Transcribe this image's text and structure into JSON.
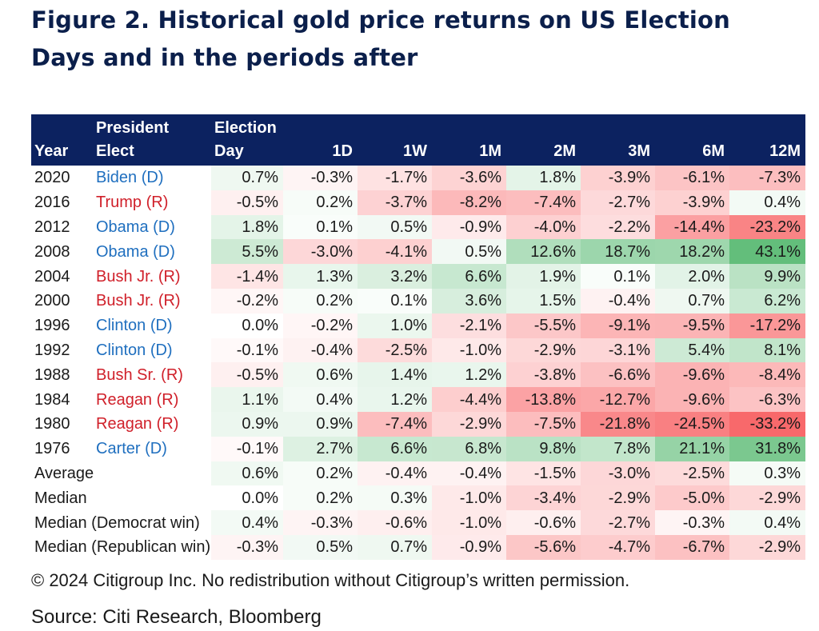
{
  "title": "Figure 2. Historical gold price returns on US Election Days and in the periods after",
  "copyright": "© 2024 Citigroup Inc. No redistribution without Citigroup’s written permission.",
  "source": "Source: Citi Research, Bloomberg",
  "chart_data": {
    "type": "table",
    "columns": [
      "Year",
      "President Elect",
      "Election Day",
      "1D",
      "1W",
      "1M",
      "2M",
      "3M",
      "6M",
      "12M"
    ],
    "rows": [
      {
        "label": "2020",
        "president": "Biden (D)",
        "party": "D",
        "values": [
          0.7,
          -0.3,
          -1.7,
          -3.6,
          1.8,
          -3.9,
          -6.1,
          -7.3
        ]
      },
      {
        "label": "2016",
        "president": "Trump (R)",
        "party": "R",
        "values": [
          -0.5,
          0.2,
          -3.7,
          -8.2,
          -7.4,
          -2.7,
          -3.9,
          0.4
        ]
      },
      {
        "label": "2012",
        "president": "Obama (D)",
        "party": "D",
        "values": [
          1.8,
          0.1,
          0.5,
          -0.9,
          -4.0,
          -2.2,
          -14.4,
          -23.2
        ]
      },
      {
        "label": "2008",
        "president": "Obama (D)",
        "party": "D",
        "values": [
          5.5,
          -3.0,
          -4.1,
          0.5,
          12.6,
          18.7,
          18.2,
          43.1
        ]
      },
      {
        "label": "2004",
        "president": "Bush Jr. (R)",
        "party": "R",
        "values": [
          -1.4,
          1.3,
          3.2,
          6.6,
          1.9,
          0.1,
          2.0,
          9.9
        ]
      },
      {
        "label": "2000",
        "president": "Bush Jr. (R)",
        "party": "R",
        "values": [
          -0.2,
          0.2,
          0.1,
          3.6,
          1.5,
          -0.4,
          0.7,
          6.2
        ]
      },
      {
        "label": "1996",
        "president": "Clinton (D)",
        "party": "D",
        "values": [
          0.0,
          -0.2,
          1.0,
          -2.1,
          -5.5,
          -9.1,
          -9.5,
          -17.2
        ]
      },
      {
        "label": "1992",
        "president": "Clinton (D)",
        "party": "D",
        "values": [
          -0.1,
          -0.4,
          -2.5,
          -1.0,
          -2.9,
          -3.1,
          5.4,
          8.1
        ]
      },
      {
        "label": "1988",
        "president": "Bush Sr. (R)",
        "party": "R",
        "values": [
          -0.5,
          0.6,
          1.4,
          1.2,
          -3.8,
          -6.6,
          -9.6,
          -8.4
        ]
      },
      {
        "label": "1984",
        "president": "Reagan (R)",
        "party": "R",
        "values": [
          1.1,
          0.4,
          1.2,
          -4.4,
          -13.8,
          -12.7,
          -9.6,
          -6.3
        ]
      },
      {
        "label": "1980",
        "president": "Reagan (R)",
        "party": "R",
        "values": [
          0.9,
          0.9,
          -7.4,
          -2.9,
          -7.5,
          -21.8,
          -24.5,
          -33.2
        ]
      },
      {
        "label": "1976",
        "president": "Carter (D)",
        "party": "D",
        "values": [
          -0.1,
          2.7,
          6.6,
          6.8,
          9.8,
          7.8,
          21.1,
          31.8
        ]
      },
      {
        "label": "Average",
        "president": "",
        "party": "",
        "values": [
          0.6,
          0.2,
          -0.4,
          -0.4,
          -1.5,
          -3.0,
          -2.5,
          0.3
        ]
      },
      {
        "label": "Median",
        "president": "",
        "party": "",
        "values": [
          0.0,
          0.2,
          0.3,
          -1.0,
          -3.4,
          -2.9,
          -5.0,
          -2.9
        ]
      },
      {
        "label": "Median (Democrat win)",
        "president": "",
        "party": "",
        "values": [
          0.4,
          -0.3,
          -0.6,
          -1.0,
          -0.6,
          -2.7,
          -0.3,
          0.4
        ]
      },
      {
        "label": "Median (Republican win)",
        "president": "",
        "party": "",
        "values": [
          -0.3,
          0.5,
          0.7,
          -0.9,
          -5.6,
          -4.7,
          -6.7,
          -2.9
        ]
      }
    ]
  },
  "colors": {
    "header_bg": "#0c2260",
    "title": "#0b1f4b",
    "democrat": "#1f6fbf",
    "republican": "#d0202a",
    "positive": "#63be7b",
    "negative": "#f8696b"
  }
}
